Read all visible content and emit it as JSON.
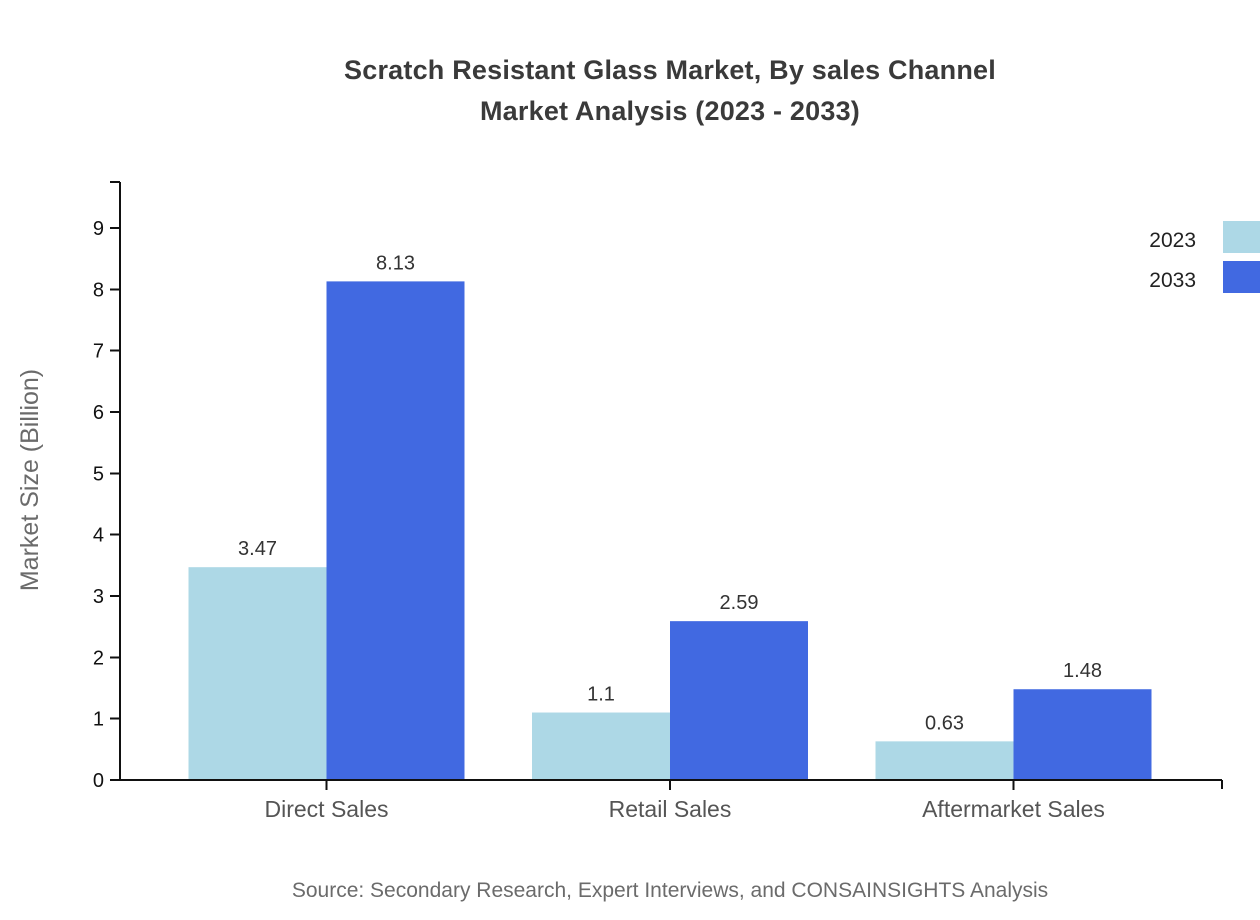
{
  "title": {
    "line1": "Scratch Resistant Glass Market, By sales Channel",
    "line2": "Market Analysis (2023 - 2033)"
  },
  "chart_data": {
    "type": "bar",
    "categories": [
      "Direct Sales",
      "Retail Sales",
      "Aftermarket Sales"
    ],
    "series": [
      {
        "name": "2023",
        "color": "#ADD8E6",
        "values": [
          3.47,
          1.1,
          0.63
        ]
      },
      {
        "name": "2033",
        "color": "#4169E1",
        "values": [
          8.13,
          2.59,
          1.48
        ]
      }
    ],
    "title": "Scratch Resistant Glass Market, By sales Channel Market Analysis (2023 - 2033)",
    "xlabel": "",
    "ylabel": "Market Size (Billion)",
    "y_ticks": [
      0,
      1,
      2,
      3,
      4,
      5,
      6,
      7,
      8,
      9
    ],
    "ylim": [
      0,
      9.75
    ],
    "grid": false,
    "legend_position": "top-right",
    "legend_entries": [
      "2023",
      "2033"
    ]
  },
  "source": "Source: Secondary Research, Expert Interviews, and CONSAINSIGHTS Analysis",
  "colors": {
    "series_2023": "#ADD8E6",
    "series_2033": "#4169E1",
    "axis": "#111111",
    "tick_label": "#111111",
    "category_label": "#555555",
    "value_label": "#333333",
    "axis_title": "#6b6b6b",
    "title_text": "#3a3a3a",
    "source_text": "#6b6b6b",
    "legend_label": "#222222",
    "background": "#ffffff"
  }
}
